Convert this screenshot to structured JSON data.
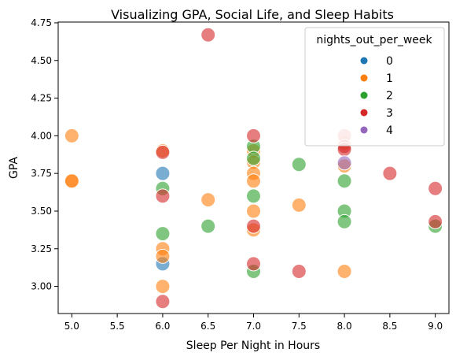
{
  "chart_data": {
    "type": "scatter",
    "title": "Visualizing GPA, Social Life, and Sleep Habits",
    "xlabel": "Sleep Per Night in Hours",
    "ylabel": "GPA",
    "xlim": [
      4.85,
      9.15
    ],
    "ylim": [
      2.82,
      4.755
    ],
    "xticks": [
      "5.0",
      "5.5",
      "6.0",
      "6.5",
      "7.0",
      "7.5",
      "8.0",
      "8.5",
      "9.0"
    ],
    "yticks": [
      "3.00",
      "3.25",
      "3.50",
      "3.75",
      "4.00",
      "4.25",
      "4.50",
      "4.75"
    ],
    "grid": false,
    "legend": {
      "title": "nights_out_per_week",
      "placement": "top-right",
      "entries": [
        {
          "label": "0",
          "color": "#1f77b4"
        },
        {
          "label": "1",
          "color": "#ff7f0e"
        },
        {
          "label": "2",
          "color": "#2ca02c"
        },
        {
          "label": "3",
          "color": "#d62728"
        },
        {
          "label": "4",
          "color": "#9467bd"
        }
      ]
    },
    "series": [
      {
        "name": "0",
        "color": "#1f77b4",
        "points": [
          [
            6.0,
            3.75
          ],
          [
            6.0,
            3.15
          ]
        ]
      },
      {
        "name": "1",
        "color": "#ff7f0e",
        "points": [
          [
            5.0,
            4.0
          ],
          [
            5.0,
            3.7
          ],
          [
            5.0,
            3.7
          ],
          [
            6.0,
            3.9
          ],
          [
            6.0,
            3.25
          ],
          [
            6.0,
            3.2
          ],
          [
            6.0,
            3.0
          ],
          [
            6.5,
            3.575
          ],
          [
            7.0,
            3.9
          ],
          [
            7.0,
            3.825
          ],
          [
            7.0,
            3.75
          ],
          [
            7.0,
            3.7
          ],
          [
            7.0,
            3.5
          ],
          [
            7.0,
            3.375
          ],
          [
            7.5,
            3.54
          ],
          [
            8.0,
            3.95
          ],
          [
            8.0,
            3.8
          ],
          [
            8.0,
            3.1
          ]
        ]
      },
      {
        "name": "2",
        "color": "#2ca02c",
        "points": [
          [
            6.0,
            3.65
          ],
          [
            6.0,
            3.35
          ],
          [
            6.5,
            3.4
          ],
          [
            7.0,
            3.93
          ],
          [
            7.0,
            3.85
          ],
          [
            7.0,
            3.6
          ],
          [
            7.0,
            3.1
          ],
          [
            7.5,
            3.81
          ],
          [
            8.0,
            3.7
          ],
          [
            8.0,
            3.5
          ],
          [
            8.0,
            3.43
          ],
          [
            9.0,
            3.4
          ]
        ]
      },
      {
        "name": "3",
        "color": "#d62728",
        "points": [
          [
            6.0,
            3.89
          ],
          [
            6.0,
            3.6
          ],
          [
            6.0,
            2.9
          ],
          [
            6.5,
            4.67
          ],
          [
            7.0,
            4.0
          ],
          [
            7.0,
            3.4
          ],
          [
            7.0,
            3.15
          ],
          [
            7.5,
            3.1
          ],
          [
            8.0,
            4.0
          ],
          [
            8.0,
            3.93
          ],
          [
            8.0,
            3.91
          ],
          [
            8.5,
            3.75
          ],
          [
            9.0,
            3.65
          ],
          [
            9.0,
            3.43
          ]
        ]
      },
      {
        "name": "4",
        "color": "#9467bd",
        "points": [
          [
            8.0,
            3.82
          ]
        ]
      }
    ]
  }
}
